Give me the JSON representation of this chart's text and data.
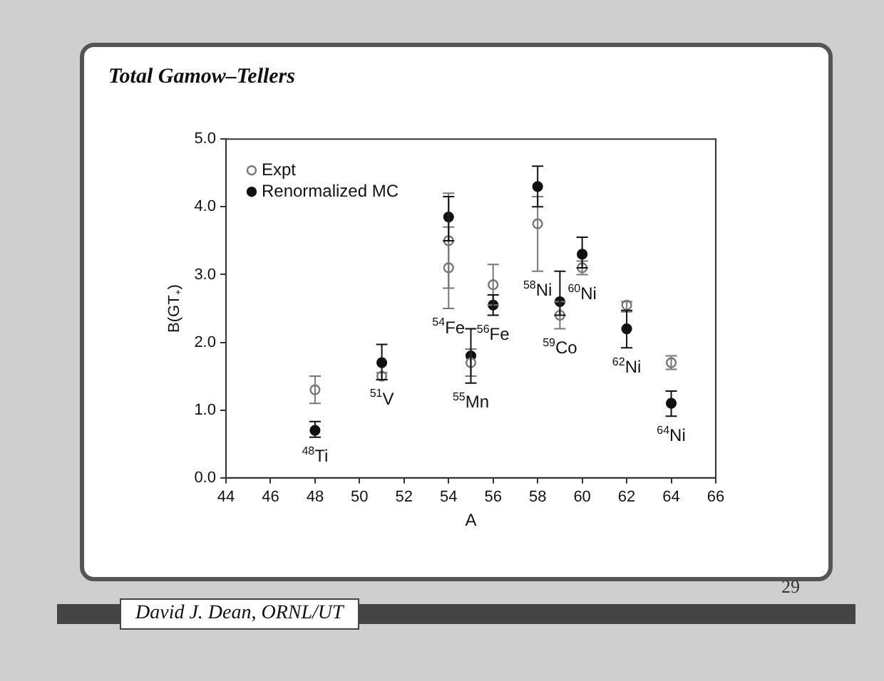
{
  "chart_data": {
    "type": "scatter",
    "title": "Total Gamow–Tellers",
    "xlabel": "A",
    "ylabel": "B(GT₊)",
    "xlim": [
      44,
      66
    ],
    "xticks": [
      44,
      46,
      48,
      50,
      52,
      54,
      56,
      58,
      60,
      62,
      64,
      66
    ],
    "ylim": [
      0,
      5
    ],
    "yticks": [
      {
        "value": 0,
        "label": "0.0"
      },
      {
        "value": 1,
        "label": "1.0"
      },
      {
        "value": 2,
        "label": "2.0"
      },
      {
        "value": 3,
        "label": "3.0"
      },
      {
        "value": 4,
        "label": "4.0"
      },
      {
        "value": 5,
        "label": "5.0"
      }
    ],
    "grid": false,
    "legend": "top left",
    "marker": "circle",
    "series": [
      {
        "name": "Expt",
        "color": "#777777",
        "x": [
          48,
          51,
          54,
          54,
          55,
          56,
          58,
          59,
          60,
          62,
          64
        ],
        "values": [
          1.3,
          1.5,
          3.1,
          3.5,
          1.7,
          2.85,
          3.75,
          2.4,
          3.1,
          2.55,
          1.7
        ],
        "errors": [
          [
            1.1,
            1.5
          ],
          [
            1.45,
            1.55
          ],
          [
            2.5,
            3.7
          ],
          [
            2.8,
            4.2
          ],
          [
            1.5,
            1.9
          ],
          [
            2.55,
            3.15
          ],
          [
            3.05,
            4.15
          ],
          [
            2.2,
            2.6
          ],
          [
            3.0,
            3.2
          ],
          [
            2.45,
            2.6
          ],
          [
            1.6,
            1.8
          ]
        ]
      },
      {
        "name": "Renormalized MC",
        "color": "#111111",
        "x": [
          48,
          51,
          54,
          55,
          56,
          58,
          59,
          60,
          62,
          64
        ],
        "values": [
          0.7,
          1.7,
          3.85,
          1.8,
          2.55,
          4.3,
          2.6,
          3.3,
          2.2,
          1.1
        ],
        "errors": [
          [
            0.6,
            0.83
          ],
          [
            1.45,
            1.97
          ],
          [
            3.5,
            4.15
          ],
          [
            1.4,
            2.2
          ],
          [
            2.4,
            2.7
          ],
          [
            4.0,
            4.6
          ],
          [
            2.4,
            3.05
          ],
          [
            3.1,
            3.55
          ],
          [
            1.92,
            2.47
          ],
          [
            0.91,
            1.28
          ]
        ]
      }
    ],
    "annotations": [
      {
        "text": "$^{48}$Ti",
        "x": 48,
        "y": 0.6
      },
      {
        "text": "$^{51}$V",
        "x": 51,
        "y": 1.45
      },
      {
        "text": "$^{54}$Fe",
        "x": 54,
        "y": 2.5
      },
      {
        "text": "$^{55}$Mn",
        "x": 55,
        "y": 1.4
      },
      {
        "text": "$^{56}$Fe",
        "x": 56,
        "y": 2.4
      },
      {
        "text": "$^{58}$Ni",
        "x": 58,
        "y": 3.05
      },
      {
        "text": "$^{59}$Co",
        "x": 59,
        "y": 2.2
      },
      {
        "text": "$^{60}$Ni",
        "x": 60,
        "y": 3.0
      },
      {
        "text": "$^{62}$Ni",
        "x": 62,
        "y": 1.92
      },
      {
        "text": "$^{64}$Ni",
        "x": 64,
        "y": 0.91
      },
      "David J. Dean, ORNL/UT",
      "29"
    ]
  }
}
